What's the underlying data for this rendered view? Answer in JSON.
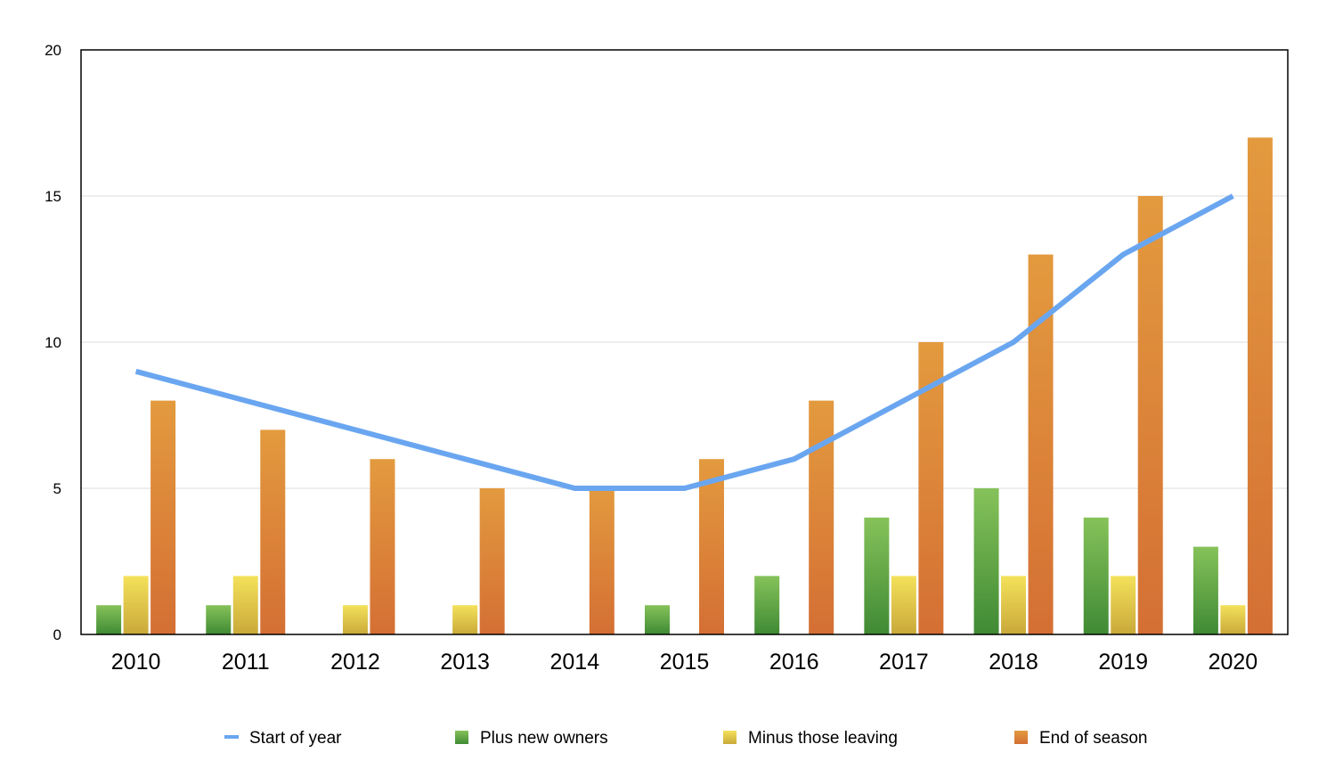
{
  "chart_data": {
    "type": "bar",
    "categories": [
      "2010",
      "2011",
      "2012",
      "2013",
      "2014",
      "2015",
      "2016",
      "2017",
      "2018",
      "2019",
      "2020"
    ],
    "ylim": [
      0,
      20
    ],
    "yticks": [
      0,
      5,
      10,
      15,
      20
    ],
    "grid": true,
    "legend_position": "bottom",
    "series": [
      {
        "name": "Start of year",
        "kind": "line",
        "color": "#6aa6f0",
        "values": [
          9,
          null,
          null,
          null,
          5,
          5,
          6,
          null,
          10,
          13,
          15
        ]
      },
      {
        "name": "Plus new owners",
        "kind": "bar",
        "color_top": "#86c25a",
        "color_bottom": "#3f8a34",
        "values": [
          1,
          1,
          0,
          0,
          0,
          1,
          2,
          4,
          5,
          4,
          3
        ]
      },
      {
        "name": "Minus those leaving",
        "kind": "bar",
        "color_top": "#f4e15a",
        "color_bottom": "#c9a93a",
        "values": [
          2,
          2,
          1,
          1,
          0,
          0,
          0,
          2,
          2,
          2,
          1
        ]
      },
      {
        "name": "End of season",
        "kind": "bar",
        "color_top": "#e39a3e",
        "color_bottom": "#d46f34",
        "values": [
          8,
          7,
          6,
          5,
          5,
          6,
          8,
          10,
          13,
          15,
          17
        ]
      }
    ]
  }
}
